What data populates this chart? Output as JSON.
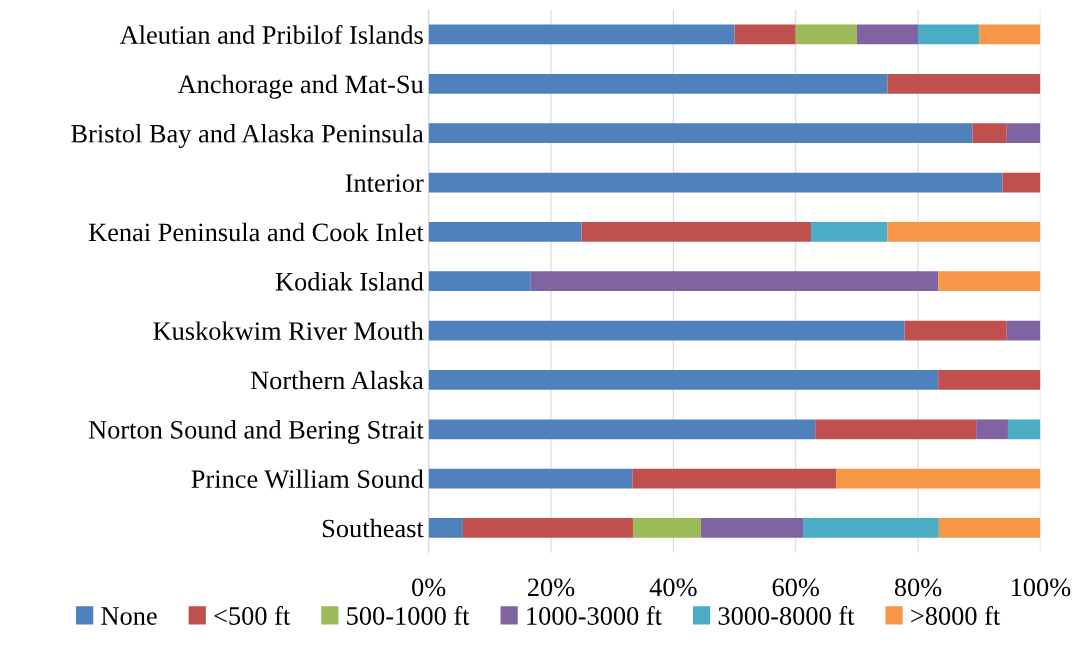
{
  "chart_data": {
    "type": "bar",
    "orientation": "horizontal",
    "stacked": true,
    "categories": [
      "Aleutian and Pribilof Islands",
      "Anchorage and Mat-Su",
      "Bristol Bay and Alaska Peninsula",
      "Interior",
      "Kenai Peninsula and Cook Inlet",
      "Kodiak Island",
      "Kuskokwim River Mouth",
      "Northern Alaska",
      "Norton Sound and Bering Strait",
      "Prince William Sound",
      "Southeast"
    ],
    "series": [
      {
        "name": "None",
        "color": "#4f81bd",
        "values": [
          50,
          75,
          88.9,
          93.8,
          25,
          16.7,
          77.8,
          83.3,
          63.2,
          33.3,
          5.6
        ]
      },
      {
        "name": "<500 ft",
        "color": "#c0504d",
        "values": [
          10,
          25,
          5.6,
          6.2,
          37.5,
          0,
          16.7,
          16.7,
          26.3,
          33.3,
          27.8
        ]
      },
      {
        "name": "500-1000 ft",
        "color": "#9bbb59",
        "values": [
          10,
          0,
          0,
          0,
          0,
          0,
          0,
          0,
          0,
          0,
          11.1
        ]
      },
      {
        "name": "1000-3000 ft",
        "color": "#8064a2",
        "values": [
          10,
          0,
          5.5,
          0,
          0,
          66.6,
          5.5,
          0,
          5.2,
          0,
          16.7
        ]
      },
      {
        "name": "3000-8000 ft",
        "color": "#4bacc6",
        "values": [
          10,
          0,
          0,
          0,
          12.5,
          0,
          0,
          0,
          5.3,
          0,
          22.2
        ]
      },
      {
        "name": ">8000 ft",
        "color": "#f79646",
        "values": [
          10,
          0,
          0,
          0,
          25,
          16.7,
          0,
          0,
          0,
          33.4,
          16.6
        ]
      }
    ],
    "xlim": [
      0,
      100
    ],
    "xticks": [
      {
        "value": 0,
        "label": "0%"
      },
      {
        "value": 20,
        "label": "20%"
      },
      {
        "value": 40,
        "label": "40%"
      },
      {
        "value": 60,
        "label": "60%"
      },
      {
        "value": 80,
        "label": "80%"
      },
      {
        "value": 100,
        "label": "100%"
      }
    ],
    "grid": "x",
    "legend": "bottom"
  }
}
